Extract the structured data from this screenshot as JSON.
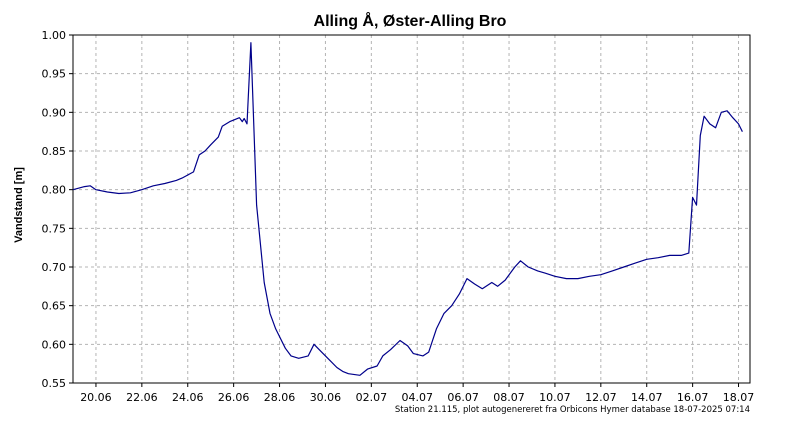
{
  "chart_data": {
    "type": "line",
    "title": "Alling Å, Øster-Alling Bro",
    "ylabel": "Vandstand [m]",
    "xlabel": "",
    "footer": "Station 21.115, plot autogenereret fra Orbicons Hymer database 18-07-2025 07:14",
    "ylim": [
      0.55,
      1.0
    ],
    "yticks": [
      0.55,
      0.6,
      0.65,
      0.7,
      0.75,
      0.8,
      0.85,
      0.9,
      0.95,
      1.0
    ],
    "ytick_labels": [
      "0.55",
      "0.60",
      "0.65",
      "0.70",
      "0.75",
      "0.80",
      "0.85",
      "0.90",
      "0.95",
      "1.00"
    ],
    "xlim": [
      "2025-06-19T00:00",
      "2025-07-18T12:00"
    ],
    "xticks": [
      "2025-06-20",
      "2025-06-22",
      "2025-06-24",
      "2025-06-26",
      "2025-06-28",
      "2025-06-30",
      "2025-07-02",
      "2025-07-04",
      "2025-07-06",
      "2025-07-08",
      "2025-07-10",
      "2025-07-12",
      "2025-07-14",
      "2025-07-16",
      "2025-07-18"
    ],
    "xtick_labels": [
      "20.06",
      "22.06",
      "24.06",
      "26.06",
      "28.06",
      "30.06",
      "02.07",
      "04.07",
      "06.07",
      "08.07",
      "10.07",
      "12.07",
      "14.07",
      "16.07",
      "18.07"
    ],
    "grid": true,
    "line_color": "#00008b",
    "series": [
      {
        "x": [
          "2025-06-19T00:00",
          "2025-06-19T12:00",
          "2025-06-19T18:00",
          "2025-06-20T00:00",
          "2025-06-20T12:00",
          "2025-06-21T00:00",
          "2025-06-21T12:00",
          "2025-06-22T00:00",
          "2025-06-22T12:00",
          "2025-06-23T00:00",
          "2025-06-23T12:00",
          "2025-06-23T18:00",
          "2025-06-24T06:00",
          "2025-06-24T12:00",
          "2025-06-24T18:00",
          "2025-06-25T00:00",
          "2025-06-25T08:00",
          "2025-06-25T12:00",
          "2025-06-25T20:00",
          "2025-06-26T00:00",
          "2025-06-26T06:00",
          "2025-06-26T09:00",
          "2025-06-26T11:00",
          "2025-06-26T14:00",
          "2025-06-26T18:00",
          "2025-06-27T00:00",
          "2025-06-27T08:00",
          "2025-06-27T14:00",
          "2025-06-27T20:00",
          "2025-06-28T06:00",
          "2025-06-28T12:00",
          "2025-06-28T20:00",
          "2025-06-29T06:00",
          "2025-06-29T12:00",
          "2025-06-29T20:00",
          "2025-06-30T04:00",
          "2025-06-30T12:00",
          "2025-06-30T18:00",
          "2025-07-01T00:00",
          "2025-07-01T12:00",
          "2025-07-01T20:00",
          "2025-07-02T06:00",
          "2025-07-02T12:00",
          "2025-07-02T20:00",
          "2025-07-03T06:00",
          "2025-07-03T14:00",
          "2025-07-03T20:00",
          "2025-07-04T06:00",
          "2025-07-04T12:00",
          "2025-07-04T20:00",
          "2025-07-05T04:00",
          "2025-07-05T12:00",
          "2025-07-05T20:00",
          "2025-07-06T04:00",
          "2025-07-06T12:00",
          "2025-07-06T20:00",
          "2025-07-07T06:00",
          "2025-07-07T12:00",
          "2025-07-07T20:00",
          "2025-07-08T06:00",
          "2025-07-08T12:00",
          "2025-07-08T20:00",
          "2025-07-09T06:00",
          "2025-07-09T14:00",
          "2025-07-10T00:00",
          "2025-07-10T12:00",
          "2025-07-11T00:00",
          "2025-07-11T12:00",
          "2025-07-12T00:00",
          "2025-07-12T12:00",
          "2025-07-13T00:00",
          "2025-07-13T12:00",
          "2025-07-14T00:00",
          "2025-07-14T12:00",
          "2025-07-15T00:00",
          "2025-07-15T12:00",
          "2025-07-15T20:00",
          "2025-07-16T00:00",
          "2025-07-16T04:00",
          "2025-07-16T08:00",
          "2025-07-16T12:00",
          "2025-07-16T18:00",
          "2025-07-17T00:00",
          "2025-07-17T06:00",
          "2025-07-17T12:00",
          "2025-07-17T18:00",
          "2025-07-18T00:00",
          "2025-07-18T04:00"
        ],
        "values": [
          0.8,
          0.804,
          0.805,
          0.8,
          0.797,
          0.795,
          0.796,
          0.8,
          0.805,
          0.808,
          0.812,
          0.815,
          0.823,
          0.845,
          0.85,
          0.858,
          0.868,
          0.882,
          0.888,
          0.89,
          0.893,
          0.888,
          0.892,
          0.885,
          0.99,
          0.78,
          0.68,
          0.64,
          0.62,
          0.595,
          0.585,
          0.582,
          0.585,
          0.6,
          0.59,
          0.58,
          0.57,
          0.565,
          0.562,
          0.56,
          0.568,
          0.572,
          0.585,
          0.593,
          0.605,
          0.598,
          0.588,
          0.585,
          0.59,
          0.62,
          0.64,
          0.65,
          0.665,
          0.685,
          0.678,
          0.672,
          0.68,
          0.675,
          0.683,
          0.7,
          0.708,
          0.7,
          0.695,
          0.692,
          0.688,
          0.685,
          0.685,
          0.688,
          0.69,
          0.695,
          0.7,
          0.705,
          0.71,
          0.712,
          0.715,
          0.715,
          0.718,
          0.79,
          0.78,
          0.87,
          0.895,
          0.885,
          0.88,
          0.9,
          0.902,
          0.893,
          0.885,
          0.875
        ]
      }
    ]
  }
}
